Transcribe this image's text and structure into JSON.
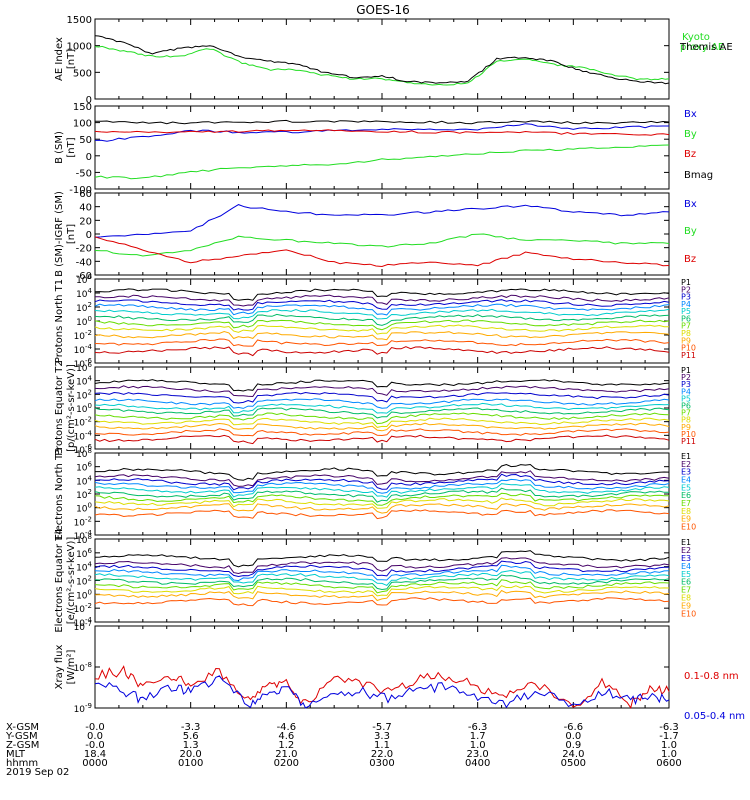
{
  "title": "GOES-16",
  "colors": {
    "black": "#000000",
    "green": "#22dd22",
    "blue": "#0000dd",
    "red": "#dd0000",
    "channels": [
      "#000000",
      "#440066",
      "#0000cc",
      "#0088ff",
      "#00cccc",
      "#00bb66",
      "#66dd00",
      "#dddd00",
      "#ffaa00",
      "#ff5500",
      "#cc0000"
    ]
  },
  "footer": {
    "row_labels": [
      "X-GSM",
      "Y-GSM",
      "Z-GSM",
      "MLT",
      "hhmm",
      "2019 Sep 02"
    ],
    "columns": [
      [
        "-0.0",
        "0.0",
        "-0.0",
        "18.4",
        "0000"
      ],
      [
        "-3.3",
        "5.6",
        "1.3",
        "20.0",
        "0100"
      ],
      [
        "-4.6",
        "4.6",
        "1.2",
        "21.0",
        "0200"
      ],
      [
        "-5.7",
        "3.3",
        "1.1",
        "22.0",
        "0300"
      ],
      [
        "-6.3",
        "1.7",
        "1.0",
        "23.0",
        "0400"
      ],
      [
        "-6.6",
        "0.0",
        "0.9",
        "24.0",
        "0500"
      ],
      [
        "-6.3",
        "-1.7",
        "1.0",
        "1.0",
        "0600"
      ]
    ]
  },
  "chart_data": [
    {
      "type": "line",
      "ylabel": "AE Index [nT]",
      "ylim": [
        0,
        1500
      ],
      "yticks": [
        "1500",
        "1000",
        "500",
        "0"
      ],
      "x_range": [
        0,
        6
      ],
      "series": [
        {
          "name": "Kyoto proxy AE",
          "x": [
            0,
            0.3,
            0.6,
            0.9,
            1.2,
            1.5,
            1.8,
            2.1,
            2.4,
            2.7,
            3.0,
            3.3,
            3.6,
            3.9,
            4.2,
            4.5,
            4.8,
            5.1,
            5.4,
            5.7,
            6.0
          ],
          "y": [
            1000,
            900,
            800,
            800,
            950,
            700,
            550,
            550,
            450,
            380,
            380,
            300,
            260,
            300,
            700,
            750,
            640,
            590,
            460,
            360,
            380
          ]
        },
        {
          "name": "Themis AE",
          "x": [
            0,
            0.3,
            0.6,
            0.9,
            1.2,
            1.5,
            1.8,
            2.1,
            2.4,
            2.7,
            3.0,
            3.3,
            3.6,
            3.9,
            4.2,
            4.5,
            4.8,
            5.1,
            5.4,
            5.7,
            6.0
          ],
          "y": [
            1200,
            1050,
            850,
            950,
            1000,
            800,
            720,
            650,
            500,
            400,
            430,
            320,
            300,
            330,
            750,
            780,
            700,
            520,
            400,
            320,
            300
          ]
        }
      ]
    },
    {
      "type": "line",
      "ylabel": "B (SM) [nT]",
      "ylim": [
        -115,
        155
      ],
      "yticks": [
        "150",
        "100",
        "50",
        "0",
        "-50",
        "-100"
      ],
      "x_range": [
        0,
        6
      ],
      "series": [
        {
          "name": "Bx",
          "x": [
            0,
            0.5,
            1,
            1.5,
            2,
            2.5,
            3,
            3.5,
            4,
            4.5,
            5,
            5.5,
            6
          ],
          "y": [
            40,
            55,
            75,
            70,
            70,
            75,
            80,
            78,
            80,
            95,
            80,
            85,
            90
          ]
        },
        {
          "name": "By",
          "x": [
            0,
            0.5,
            1,
            1.5,
            2,
            2.5,
            3,
            3.5,
            4,
            4.5,
            5,
            5.5,
            6
          ],
          "y": [
            -75,
            -80,
            -60,
            -45,
            -40,
            -35,
            -20,
            -10,
            0,
            10,
            15,
            20,
            28
          ]
        },
        {
          "name": "Bz",
          "x": [
            0,
            0.5,
            1,
            1.5,
            2,
            2.5,
            3,
            3.5,
            4,
            4.5,
            5,
            5.5,
            6
          ],
          "y": [
            70,
            70,
            72,
            72,
            75,
            75,
            72,
            70,
            68,
            70,
            65,
            62,
            62
          ]
        },
        {
          "name": "Bmag",
          "x": [
            0,
            0.5,
            1,
            1.5,
            2,
            2.5,
            3,
            3.5,
            4,
            4.5,
            5,
            5.5,
            6
          ],
          "y": [
            105,
            100,
            100,
            102,
            105,
            105,
            103,
            103,
            100,
            105,
            100,
            100,
            103
          ]
        }
      ]
    },
    {
      "type": "line",
      "ylabel": "B (SM)-IGRF (SM) [nT]",
      "ylim": [
        -65,
        65
      ],
      "yticks": [
        "60",
        "40",
        "20",
        "0",
        "-20",
        "-40",
        "-60"
      ],
      "x_range": [
        0,
        6
      ],
      "series": [
        {
          "name": "Bx",
          "x": [
            0,
            0.5,
            1,
            1.5,
            2,
            2.5,
            3,
            3.5,
            4,
            4.5,
            5,
            5.5,
            6
          ],
          "y": [
            -5,
            0,
            5,
            45,
            35,
            30,
            30,
            35,
            40,
            45,
            35,
            30,
            35
          ]
        },
        {
          "name": "By",
          "x": [
            0,
            0.5,
            1,
            1.5,
            2,
            2.5,
            3,
            3.5,
            4,
            4.5,
            5,
            5.5,
            6
          ],
          "y": [
            -25,
            -35,
            -25,
            -5,
            -10,
            -15,
            -20,
            -15,
            0,
            -10,
            -10,
            -15,
            -15
          ]
        },
        {
          "name": "Bz",
          "x": [
            0,
            0.5,
            1,
            1.5,
            2,
            2.5,
            3,
            3.5,
            4,
            4.5,
            5,
            5.5,
            6
          ],
          "y": [
            -5,
            -25,
            -45,
            -35,
            -25,
            -45,
            -50,
            -45,
            -50,
            -30,
            -40,
            -45,
            -50
          ]
        }
      ]
    },
    {
      "type": "line",
      "ylabel": "Protons North T1",
      "ylog": true,
      "ylim_exp": [
        -7,
        6
      ],
      "yticks": [
        "10^6",
        "10^4",
        "10^2",
        "10^0",
        "10^-2",
        "10^-4",
        "10^-6"
      ],
      "channels": [
        "P1",
        "P2",
        "P3",
        "P4",
        "P5",
        "P6",
        "P7",
        "P8",
        "P9",
        "P10",
        "P11"
      ],
      "base_exp": [
        4.0,
        3.0,
        2.3,
        1.6,
        0.8,
        0.0,
        -0.8,
        -1.6,
        -2.6,
        -3.8,
        -5.0
      ]
    },
    {
      "type": "line",
      "ylabel": "Protons Equator T2 [p/(cm^2-s-sr-keV)]",
      "ylog": true,
      "ylim_exp": [
        -7,
        6
      ],
      "yticks": [
        "10^6",
        "10^4",
        "10^2",
        "10^0",
        "10^-2",
        "10^-4",
        "10^-6"
      ],
      "channels": [
        "P1",
        "P2",
        "P3",
        "P4",
        "P5",
        "P6",
        "P7",
        "P8",
        "P9",
        "P10",
        "P11"
      ],
      "base_exp": [
        3.5,
        2.5,
        1.5,
        0.5,
        -0.3,
        -1.0,
        -1.8,
        -2.6,
        -3.4,
        -4.3,
        -5.3
      ]
    },
    {
      "type": "line",
      "ylabel": "Electrons North T3",
      "ylog": true,
      "ylim_exp": [
        -4,
        8
      ],
      "yticks": [
        "10^8",
        "10^6",
        "10^4",
        "10^2",
        "10^0",
        "10^-2",
        "10^-4"
      ],
      "channels": [
        "E1",
        "E2",
        "E3",
        "E4",
        "E5",
        "E6",
        "E7",
        "E8",
        "E9",
        "E10"
      ],
      "base_exp": [
        5.3,
        4.3,
        3.8,
        3.2,
        2.6,
        2.0,
        1.4,
        0.8,
        0.1,
        -0.8
      ]
    },
    {
      "type": "line",
      "ylabel": "Electrons Equator T4 [e/(cm^2-s-sr-keV)]",
      "ylog": true,
      "ylim_exp": [
        -4,
        8
      ],
      "yticks": [
        "10^8",
        "10^6",
        "10^4",
        "10^2",
        "10^0",
        "10^-2",
        "10^-4"
      ],
      "channels": [
        "E1",
        "E2",
        "E3",
        "E4",
        "E5",
        "E6",
        "E7",
        "E8",
        "E9",
        "E10"
      ],
      "base_exp": [
        5.3,
        4.3,
        3.7,
        3.1,
        2.5,
        1.9,
        1.3,
        0.7,
        0.0,
        -1.0
      ]
    },
    {
      "type": "line",
      "ylabel": "Xray flux [W/m^2]",
      "ylog": true,
      "ylim_exp": [
        -9,
        -7
      ],
      "yticks": [
        "10^-7",
        "10^-8",
        "10^-9"
      ],
      "x_range": [
        0,
        6
      ],
      "series": [
        {
          "name": "0.1-0.8 nm",
          "x": [
            0,
            0.3,
            0.5,
            0.8,
            1.0,
            1.3,
            1.6,
            1.8,
            2.0,
            2.2,
            2.5,
            2.8,
            3.1,
            3.4,
            3.7,
            4.0,
            4.3,
            4.6,
            5.0,
            5.3,
            5.6,
            5.8,
            6.0
          ],
          "y": [
            -8.2,
            -8.1,
            -8.5,
            -8.2,
            -8.4,
            -8.1,
            -8.8,
            -8.5,
            -8.4,
            -8.9,
            -8.3,
            -8.4,
            -8.6,
            -8.3,
            -8.2,
            -8.5,
            -8.7,
            -8.4,
            -9.0,
            -8.4,
            -8.9,
            -8.5,
            -8.6
          ]
        },
        {
          "name": "0.05-0.4 nm",
          "x": [
            0,
            0.3,
            0.5,
            0.8,
            1.0,
            1.3,
            1.6,
            1.8,
            2.0,
            2.2,
            2.5,
            2.8,
            3.1,
            3.4,
            3.7,
            4.0,
            4.3,
            4.6,
            5.0,
            5.3,
            5.6,
            5.8,
            6.0
          ],
          "y": [
            -8.4,
            -8.6,
            -8.8,
            -8.5,
            -8.6,
            -8.3,
            -8.9,
            -8.7,
            -8.5,
            -9.0,
            -8.6,
            -8.6,
            -8.8,
            -8.5,
            -8.5,
            -8.8,
            -8.9,
            -8.6,
            -8.9,
            -8.6,
            -8.8,
            -8.7,
            -8.8
          ]
        }
      ]
    }
  ]
}
